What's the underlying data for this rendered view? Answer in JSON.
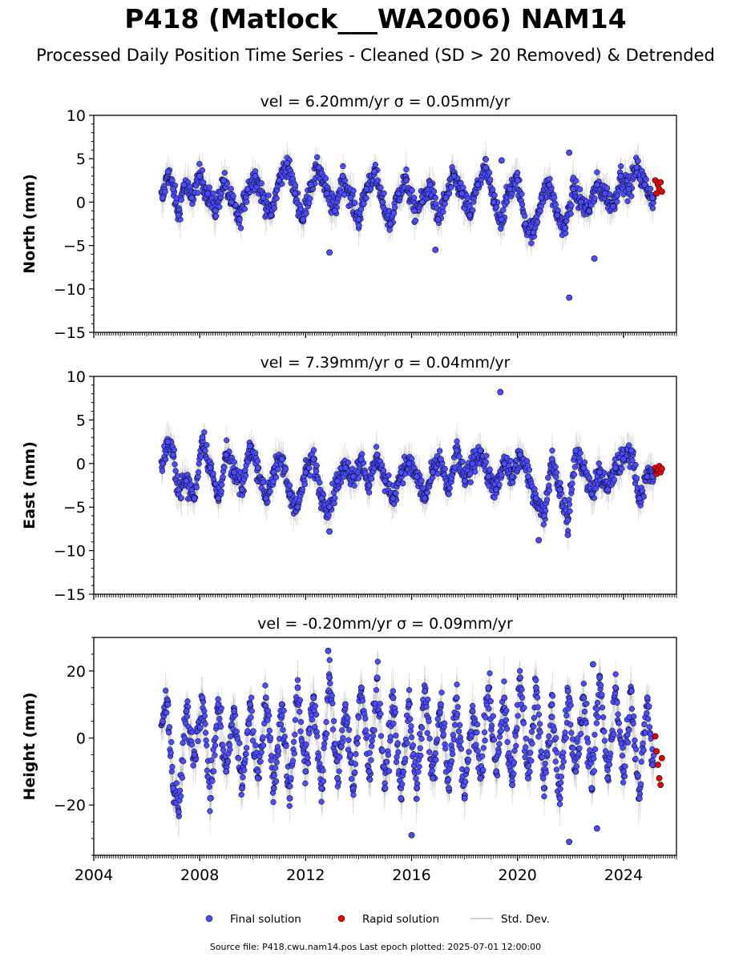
{
  "page": {
    "title": "P418 (Matlock___WA2006) NAM14",
    "subtitle": "Processed Daily Position Time Series - Cleaned (SD > 20 Removed) & Detrended",
    "footer": "Source file: P418.cwu.nam14.pos  Last epoch plotted: 2025-07-01 12:00:00"
  },
  "colors": {
    "final": "#4b4bff",
    "rapid": "#ee0000",
    "stddev": "#c8c8c8",
    "marker_edge": "#000000"
  },
  "legend": [
    {
      "label": "Final solution",
      "marker": "circle",
      "color": "#4b4bff"
    },
    {
      "label": "Rapid solution",
      "marker": "circle",
      "color": "#ee0000"
    },
    {
      "label": "Std. Dev.",
      "marker": "line",
      "color": "#c8c8c8"
    }
  ],
  "chart_data": [
    {
      "type": "scatter",
      "component": "north",
      "title": "vel = 6.20mm/yr   σ = 0.05mm/yr",
      "ylabel": "North (mm)",
      "xlim": [
        2004.0,
        2026.0
      ],
      "ylim": [
        -15,
        10
      ],
      "yticks": [
        10,
        5,
        0,
        -5,
        -10,
        -15
      ],
      "xticks": [
        2004,
        2008,
        2012,
        2016,
        2020,
        2024
      ],
      "show_xtick_labels": false,
      "grid": false,
      "series": [
        {
          "name": "Final solution",
          "x": [
            2006.6,
            2006.8,
            2007.0,
            2007.2,
            2007.4,
            2007.7,
            2008.0,
            2008.3,
            2008.6,
            2008.9,
            2009.2,
            2009.5,
            2009.8,
            2010.1,
            2010.4,
            2010.7,
            2011.0,
            2011.3,
            2011.6,
            2011.9,
            2012.2,
            2012.5,
            2012.8,
            2013.1,
            2013.4,
            2013.7,
            2014.0,
            2014.3,
            2014.6,
            2014.9,
            2015.2,
            2015.5,
            2015.8,
            2016.1,
            2016.4,
            2016.7,
            2017.0,
            2017.3,
            2017.6,
            2017.9,
            2018.2,
            2018.5,
            2018.8,
            2019.1,
            2019.4,
            2019.7,
            2020.0,
            2020.3,
            2020.6,
            2020.9,
            2021.2,
            2021.5,
            2021.8,
            2022.1,
            2022.4,
            2022.7,
            2023.0,
            2023.3,
            2023.6,
            2023.9,
            2024.2,
            2024.5,
            2024.8,
            2025.1,
            2012.9,
            2016.9,
            2021.95,
            2021.95,
            2022.9,
            2019.4
          ],
          "y": [
            0.5,
            3.5,
            1.5,
            -1.5,
            2.0,
            0.5,
            3.0,
            1.0,
            -1.0,
            2.5,
            0.0,
            -2.0,
            1.5,
            3.0,
            0.5,
            -1.5,
            2.5,
            4.5,
            1.0,
            -2.0,
            2.0,
            4.0,
            1.0,
            -1.0,
            3.0,
            0.5,
            -2.0,
            1.5,
            3.5,
            0.0,
            -2.5,
            1.0,
            2.5,
            -1.0,
            0.0,
            2.0,
            -2.0,
            0.5,
            3.0,
            1.0,
            -1.5,
            2.0,
            4.0,
            0.0,
            -2.0,
            1.5,
            2.5,
            -2.5,
            -3.5,
            0.5,
            2.0,
            -1.5,
            -3.0,
            1.5,
            0.0,
            -1.0,
            2.0,
            1.0,
            -0.5,
            3.0,
            1.5,
            4.0,
            2.0,
            0.5,
            -5.8,
            -5.5,
            -11.0,
            5.7,
            -6.5,
            4.8
          ]
        },
        {
          "name": "Rapid solution",
          "x": [
            2025.2,
            2025.25,
            2025.3,
            2025.35,
            2025.4,
            2025.45
          ],
          "y": [
            2.5,
            1.0,
            2.0,
            1.5,
            2.3,
            1.2
          ]
        }
      ]
    },
    {
      "type": "scatter",
      "component": "east",
      "title": "vel = 7.39mm/yr   σ = 0.04mm/yr",
      "ylabel": "East (mm)",
      "xlim": [
        2004.0,
        2026.0
      ],
      "ylim": [
        -15,
        10
      ],
      "yticks": [
        10,
        5,
        0,
        -5,
        -10,
        -15
      ],
      "xticks": [
        2004,
        2008,
        2012,
        2016,
        2020,
        2024
      ],
      "show_xtick_labels": false,
      "grid": false,
      "series": [
        {
          "name": "Final solution",
          "x": [
            2006.6,
            2006.8,
            2007.0,
            2007.2,
            2007.5,
            2007.8,
            2008.1,
            2008.4,
            2008.7,
            2009.0,
            2009.3,
            2009.6,
            2009.9,
            2010.2,
            2010.5,
            2010.8,
            2011.1,
            2011.4,
            2011.7,
            2012.0,
            2012.3,
            2012.6,
            2012.9,
            2013.2,
            2013.5,
            2013.8,
            2014.1,
            2014.4,
            2014.7,
            2015.0,
            2015.3,
            2015.6,
            2015.9,
            2016.2,
            2016.5,
            2016.8,
            2017.1,
            2017.4,
            2017.7,
            2018.0,
            2018.3,
            2018.6,
            2018.9,
            2019.2,
            2019.5,
            2019.8,
            2020.1,
            2020.4,
            2020.7,
            2021.0,
            2021.3,
            2021.6,
            2021.9,
            2022.2,
            2022.5,
            2022.8,
            2023.1,
            2023.4,
            2023.7,
            2024.0,
            2024.3,
            2024.6,
            2024.9,
            2025.1,
            2012.9,
            2020.8,
            2021.9,
            2019.35
          ],
          "y": [
            0.0,
            2.5,
            1.0,
            -3.0,
            -2.0,
            -4.0,
            3.0,
            -0.5,
            -4.0,
            1.0,
            -1.0,
            -3.0,
            2.0,
            -0.5,
            -4.0,
            -1.0,
            0.5,
            -3.5,
            -5.0,
            -1.0,
            0.5,
            -4.0,
            -5.0,
            -2.0,
            -0.5,
            -1.5,
            0.5,
            -2.5,
            1.0,
            -2.0,
            -4.0,
            -1.0,
            0.0,
            -1.5,
            -4.0,
            -1.0,
            0.5,
            -3.5,
            1.5,
            -2.0,
            0.0,
            1.5,
            -1.5,
            -3.0,
            0.0,
            -1.5,
            1.0,
            -1.5,
            -4.0,
            -6.0,
            0.5,
            -3.0,
            -6.5,
            1.5,
            -0.5,
            -3.5,
            -1.0,
            -3.0,
            -0.5,
            0.5,
            1.5,
            -4.0,
            -1.5,
            -1.5,
            -7.8,
            -8.8,
            -8.2,
            8.2
          ]
        },
        {
          "name": "Rapid solution",
          "x": [
            2025.2,
            2025.25,
            2025.3,
            2025.35,
            2025.4,
            2025.45
          ],
          "y": [
            -0.5,
            -1.2,
            -0.8,
            -0.3,
            -1.0,
            -0.6
          ]
        }
      ]
    },
    {
      "type": "scatter",
      "component": "height",
      "title": "vel = -0.20mm/yr   σ = 0.09mm/yr",
      "ylabel": "Height (mm)",
      "xlim": [
        2004.0,
        2026.0
      ],
      "ylim": [
        -35,
        30
      ],
      "yticks": [
        20,
        0,
        -20
      ],
      "xticks": [
        2004,
        2008,
        2012,
        2016,
        2020,
        2024
      ],
      "xtick_labels": [
        "2004",
        "2008",
        "2012",
        "2016",
        "2020",
        "2024"
      ],
      "show_xtick_labels": true,
      "grid": false,
      "series": [
        {
          "name": "Final solution",
          "x": [
            2006.6,
            2006.8,
            2007.0,
            2007.2,
            2007.5,
            2007.8,
            2008.1,
            2008.4,
            2008.7,
            2009.0,
            2009.3,
            2009.6,
            2009.9,
            2010.2,
            2010.5,
            2010.8,
            2011.1,
            2011.4,
            2011.7,
            2012.0,
            2012.3,
            2012.6,
            2012.9,
            2013.2,
            2013.5,
            2013.8,
            2014.1,
            2014.4,
            2014.7,
            2015.0,
            2015.3,
            2015.6,
            2015.9,
            2016.2,
            2016.5,
            2016.8,
            2017.1,
            2017.4,
            2017.7,
            2018.0,
            2018.3,
            2018.6,
            2018.9,
            2019.2,
            2019.5,
            2019.8,
            2020.1,
            2020.4,
            2020.7,
            2021.0,
            2021.3,
            2021.6,
            2021.9,
            2022.2,
            2022.5,
            2022.8,
            2023.1,
            2023.4,
            2023.7,
            2024.0,
            2024.3,
            2024.6,
            2024.9,
            2025.1,
            2012.85,
            2016.0,
            2021.95,
            2022.85,
            2023.0
          ],
          "y": [
            5.0,
            10.0,
            -15.0,
            -22.0,
            8.0,
            -5.0,
            12.0,
            -18.0,
            10.0,
            -10.0,
            8.0,
            -15.0,
            10.0,
            -12.0,
            12.0,
            -15.0,
            10.0,
            -18.0,
            15.0,
            -10.0,
            12.0,
            -15.0,
            18.0,
            -12.0,
            10.0,
            -15.0,
            15.0,
            -10.0,
            18.0,
            -15.0,
            12.0,
            -18.0,
            10.0,
            -15.0,
            14.0,
            -12.0,
            10.0,
            -15.0,
            12.0,
            -18.0,
            8.0,
            -12.0,
            15.0,
            -10.0,
            12.0,
            -14.0,
            18.0,
            -12.0,
            15.0,
            -15.0,
            10.0,
            -18.0,
            14.0,
            -10.0,
            12.0,
            -15.0,
            18.0,
            -12.0,
            15.0,
            -10.0,
            14.0,
            -18.0,
            12.0,
            -8.0,
            26.0,
            -29.0,
            -31.0,
            22.0,
            -27.0
          ]
        },
        {
          "name": "Rapid solution",
          "x": [
            2025.2,
            2025.25,
            2025.3,
            2025.35,
            2025.4,
            2025.45
          ],
          "y": [
            0.5,
            -4.0,
            -8.0,
            -12.0,
            -14.0,
            -6.0
          ]
        }
      ]
    }
  ]
}
